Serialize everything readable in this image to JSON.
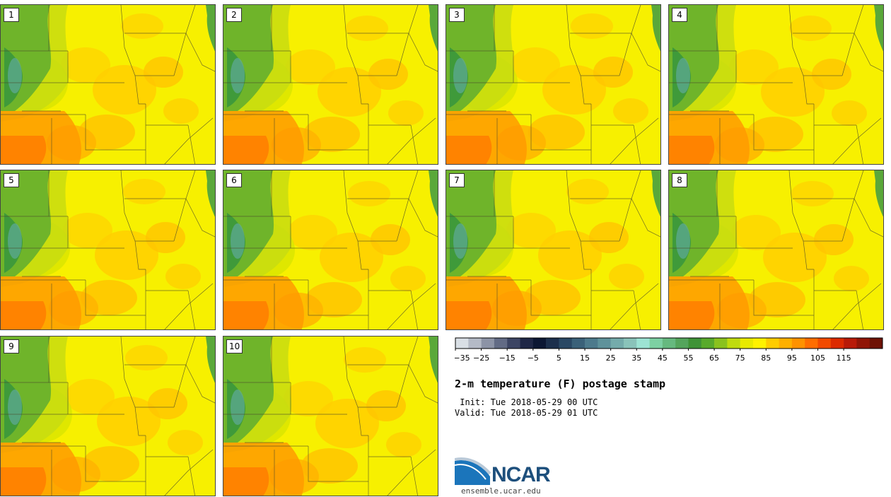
{
  "panels": [
    {
      "label": "1"
    },
    {
      "label": "2"
    },
    {
      "label": "3"
    },
    {
      "label": "4"
    },
    {
      "label": "5"
    },
    {
      "label": "6"
    },
    {
      "label": "7"
    },
    {
      "label": "8"
    },
    {
      "label": "9"
    },
    {
      "label": "10"
    }
  ],
  "colorbar": {
    "colors": [
      "#d9dfe5",
      "#b4bac6",
      "#8c93a6",
      "#626b85",
      "#3c4563",
      "#1f2746",
      "#0c1733",
      "#1c2f4c",
      "#2a4864",
      "#3b6179",
      "#4d7a8c",
      "#5f929b",
      "#74abab",
      "#8ac3ba",
      "#9de3d3",
      "#7dd0a3",
      "#66b97f",
      "#54a55c",
      "#3f9337",
      "#58aa2b",
      "#8ac21e",
      "#bfdb0e",
      "#e8ea00",
      "#fff200",
      "#ffcc00",
      "#ffb000",
      "#ff9200",
      "#ff6d00",
      "#f24a00",
      "#dc2a00",
      "#b81a08",
      "#901506",
      "#6e1204"
    ],
    "tick_labels": [
      "−35",
      "−25",
      "−15",
      "−5",
      "5",
      "15",
      "25",
      "35",
      "45",
      "55",
      "65",
      "75",
      "85",
      "95",
      "105",
      "115"
    ]
  },
  "title": "2-m temperature (F) postage stamp",
  "init_line": " Init: Tue 2018-05-29 00 UTC",
  "valid_line": "Valid: Tue 2018-05-29 01 UTC",
  "logo": {
    "text": "NCAR",
    "url": "ensemble.ucar.edu"
  }
}
